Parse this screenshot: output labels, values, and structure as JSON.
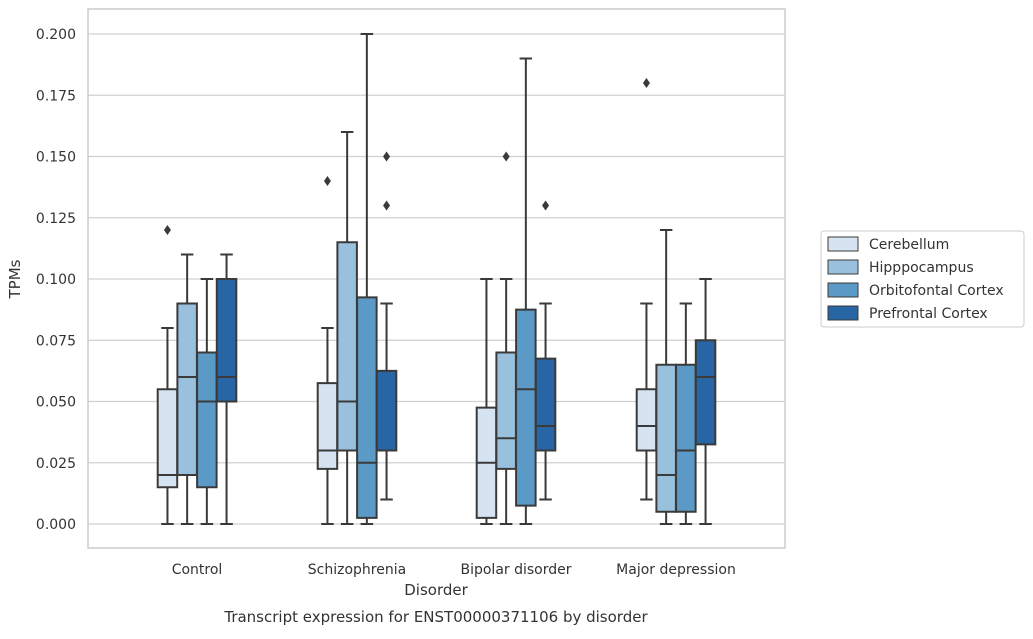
{
  "chart_data": {
    "type": "box",
    "title": "",
    "caption": "Transcript expression for ENST00000371106 by disorder",
    "xlabel": "Disorder",
    "ylabel": "TPMs",
    "ylim": [
      -0.01,
      0.21
    ],
    "yticks": [
      "0.000",
      "0.025",
      "0.050",
      "0.075",
      "0.100",
      "0.125",
      "0.150",
      "0.175",
      "0.200"
    ],
    "ytick_values": [
      0,
      0.025,
      0.05,
      0.075,
      0.1,
      0.125,
      0.15,
      0.175,
      0.2
    ],
    "categories": [
      "Control",
      "Schizophrenia",
      "Bipolar disorder",
      "Major depression"
    ],
    "grid": "horizontal",
    "legend_position": "right",
    "series": [
      {
        "name": "Cerebellum",
        "color": "#d6e4f1",
        "boxes": [
          {
            "whislo": 0.0,
            "q1": 0.015,
            "med": 0.02,
            "q3": 0.055,
            "whishi": 0.08,
            "fliers": [
              0.12
            ]
          },
          {
            "whislo": 0.0,
            "q1": 0.0225,
            "med": 0.03,
            "q3": 0.0575,
            "whishi": 0.08,
            "fliers": [
              0.14
            ]
          },
          {
            "whislo": 0.0,
            "q1": 0.0025,
            "med": 0.025,
            "q3": 0.0475,
            "whishi": 0.1,
            "fliers": []
          },
          {
            "whislo": 0.01,
            "q1": 0.03,
            "med": 0.04,
            "q3": 0.055,
            "whishi": 0.09,
            "fliers": [
              0.18
            ]
          }
        ]
      },
      {
        "name": "Hipppocampus",
        "color": "#99c1de",
        "boxes": [
          {
            "whislo": 0.0,
            "q1": 0.02,
            "med": 0.06,
            "q3": 0.09,
            "whishi": 0.11,
            "fliers": []
          },
          {
            "whislo": 0.0,
            "q1": 0.03,
            "med": 0.05,
            "q3": 0.115,
            "whishi": 0.16,
            "fliers": []
          },
          {
            "whislo": 0.0,
            "q1": 0.0225,
            "med": 0.035,
            "q3": 0.07,
            "whishi": 0.1,
            "fliers": [
              0.15
            ]
          },
          {
            "whislo": 0.0,
            "q1": 0.005,
            "med": 0.02,
            "q3": 0.065,
            "whishi": 0.12,
            "fliers": []
          }
        ]
      },
      {
        "name": "Orbitofontal Cortex",
        "color": "#5b9ac7",
        "boxes": [
          {
            "whislo": 0.0,
            "q1": 0.015,
            "med": 0.05,
            "q3": 0.07,
            "whishi": 0.1,
            "fliers": []
          },
          {
            "whislo": 0.0,
            "q1": 0.0025,
            "med": 0.025,
            "q3": 0.0925,
            "whishi": 0.2,
            "fliers": []
          },
          {
            "whislo": 0.0,
            "q1": 0.0075,
            "med": 0.055,
            "q3": 0.0875,
            "whishi": 0.19,
            "fliers": []
          },
          {
            "whislo": 0.0,
            "q1": 0.005,
            "med": 0.03,
            "q3": 0.065,
            "whishi": 0.09,
            "fliers": []
          }
        ]
      },
      {
        "name": "Prefrontal Cortex",
        "color": "#2765a4",
        "boxes": [
          {
            "whislo": 0.0,
            "q1": 0.05,
            "med": 0.06,
            "q3": 0.1,
            "whishi": 0.11,
            "fliers": []
          },
          {
            "whislo": 0.01,
            "q1": 0.03,
            "med": 0.03,
            "q3": 0.0625,
            "whishi": 0.09,
            "fliers": [
              0.13,
              0.15
            ]
          },
          {
            "whislo": 0.01,
            "q1": 0.03,
            "med": 0.04,
            "q3": 0.0675,
            "whishi": 0.09,
            "fliers": [
              0.13
            ]
          },
          {
            "whislo": 0.0,
            "q1": 0.0325,
            "med": 0.06,
            "q3": 0.075,
            "whishi": 0.1,
            "fliers": []
          }
        ]
      }
    ]
  }
}
